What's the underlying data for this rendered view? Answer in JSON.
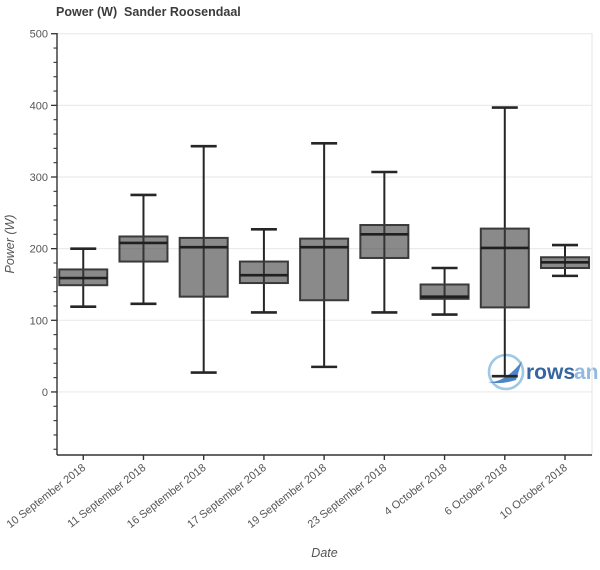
{
  "title": "Power (W)  Sander Roosendaal",
  "watermark": {
    "text_bold": "rows",
    "text_light": "an",
    "color_bold": "#36669f",
    "color_light": "#92b9e0",
    "circle_color": "#9fc8e4",
    "swoosh_color": "#4e86c5"
  },
  "colors": {
    "box_fill": "#8a8a8a",
    "box_border": "#3a3a3a",
    "whisker": "#262626",
    "median": "#1f1f1f",
    "gridline": "#ebebeb",
    "axis_line": "#333333",
    "tick_text": "#555555",
    "title_text": "#3c3c3c"
  },
  "chart_data": {
    "type": "box",
    "title": "Power (W)  Sander Roosendaal",
    "xlabel": "Date",
    "ylabel": "Power (W)",
    "ylim": [
      -88,
      501
    ],
    "yticks": [
      0,
      100,
      200,
      300,
      400,
      500
    ],
    "minor_tick_step": 20,
    "grid": true,
    "legend": "none",
    "categories": [
      "10 September 2018",
      "11 September 2018",
      "16 September 2018",
      "17 September 2018",
      "19 September 2018",
      "23 September 2018",
      "4 October 2018",
      "6 October 2018",
      "10 October 2018"
    ],
    "boxes": [
      {
        "date": "10 September 2018",
        "low": 119,
        "q1": 149,
        "median": 159,
        "q3": 171,
        "high": 200
      },
      {
        "date": "11 September 2018",
        "low": 123,
        "q1": 182,
        "median": 208,
        "q3": 217,
        "high": 275
      },
      {
        "date": "16 September 2018",
        "low": 27,
        "q1": 133,
        "median": 202,
        "q3": 215,
        "high": 343
      },
      {
        "date": "17 September 2018",
        "low": 111,
        "q1": 152,
        "median": 163,
        "q3": 182,
        "high": 227
      },
      {
        "date": "19 September 2018",
        "low": 35,
        "q1": 128,
        "median": 202,
        "q3": 214,
        "high": 347
      },
      {
        "date": "23 September 2018",
        "low": 111,
        "q1": 187,
        "median": 220,
        "q3": 233,
        "high": 307
      },
      {
        "date": "4 October 2018",
        "low": 108,
        "q1": 130,
        "median": 133,
        "q3": 150,
        "high": 173
      },
      {
        "date": "6 October 2018",
        "low": 22,
        "q1": 118,
        "median": 201,
        "q3": 228,
        "high": 397
      },
      {
        "date": "10 October 2018",
        "low": 162,
        "q1": 173,
        "median": 181,
        "q3": 188,
        "high": 205
      }
    ]
  }
}
